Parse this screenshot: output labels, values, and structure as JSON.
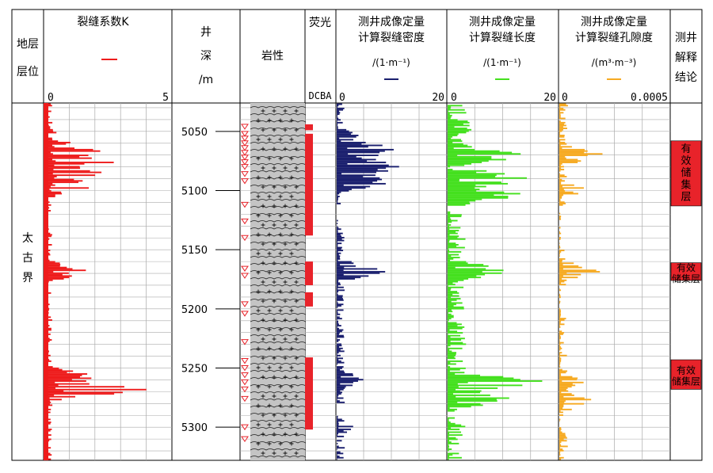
{
  "header": {
    "formation": [
      "地层",
      "层位"
    ],
    "fracture_coef": {
      "title": "裂缝系数K",
      "min": "0",
      "max": "5"
    },
    "depth": {
      "title": [
        "井",
        "深",
        "/m"
      ]
    },
    "lithology": {
      "title": "岩性"
    },
    "fluorescence": {
      "title": "荧光",
      "scale": "DCBA"
    },
    "density": {
      "title": [
        "测井成像定量",
        "计算裂缝密度"
      ],
      "unit": "/(1·m⁻¹)",
      "min": "0",
      "max": "20"
    },
    "length": {
      "title": [
        "测井成像定量",
        "计算裂缝长度"
      ],
      "unit": "/(1·m⁻¹)",
      "min": "0",
      "max": "20"
    },
    "porosity": {
      "title": [
        "测井成像定量",
        "计算裂缝孔隙度"
      ],
      "unit": "/(m³·m⁻³)",
      "min": "0",
      "max": "0.0005"
    },
    "interp": {
      "title": [
        "测井",
        "解释",
        "结论"
      ]
    }
  },
  "formation_name": [
    "太",
    "古",
    "界"
  ],
  "depth_ticks": [
    "5050",
    "5100",
    "5150",
    "5200",
    "5250",
    "5300"
  ],
  "colors": {
    "coef": "#ee1c1c",
    "density": "#1a1f6e",
    "length": "#44e01e",
    "porosity": "#f6aa22",
    "lith_bg": "#c4c4c4",
    "interp": "#e8232a",
    "fluor": "#e8232a",
    "grid": "#aaaaaa"
  },
  "chart_data": {
    "type": "well-log",
    "depth_range_m": [
      5026,
      5328
    ],
    "tracks": [
      {
        "name": "裂缝系数K",
        "range": [
          0,
          5
        ],
        "peaks": [
          [
            5052,
            0.6
          ],
          [
            5066,
            2.6
          ],
          [
            5076,
            2.9
          ],
          [
            5086,
            3.1
          ],
          [
            5096,
            2.3
          ],
          [
            5168,
            1.8
          ],
          [
            5258,
            2.2
          ],
          [
            5268,
            4.2
          ]
        ]
      },
      {
        "name": "测井成像定量计算裂缝密度",
        "range": [
          0,
          20
        ],
        "peaks": [
          [
            5054,
            4
          ],
          [
            5066,
            13
          ],
          [
            5080,
            16
          ],
          [
            5092,
            12
          ],
          [
            5168,
            9
          ],
          [
            5260,
            5
          ],
          [
            5300,
            3
          ]
        ]
      },
      {
        "name": "测井成像定量计算裂缝长度",
        "range": [
          0,
          20
        ],
        "peaks": [
          [
            5046,
            6
          ],
          [
            5070,
            15
          ],
          [
            5090,
            18
          ],
          [
            5104,
            14
          ],
          [
            5168,
            12
          ],
          [
            5262,
            18
          ],
          [
            5276,
            12
          ]
        ]
      },
      {
        "name": "测井成像定量计算裂缝孔隙度",
        "range": [
          0,
          0.0005
        ],
        "peaks": [
          [
            5070,
            0.0002
          ],
          [
            5100,
            0.00013
          ],
          [
            5168,
            0.00019
          ],
          [
            5262,
            0.00012
          ],
          [
            5278,
            0.00016
          ]
        ]
      }
    ],
    "interpretation": [
      {
        "label": "有效储集层",
        "top_m": 5058,
        "bottom_m": 5113
      },
      {
        "label": "有效储集层",
        "top_m": 5161,
        "bottom_m": 5176
      },
      {
        "label": "有效储集层",
        "top_m": 5243,
        "bottom_m": 5268
      }
    ]
  }
}
